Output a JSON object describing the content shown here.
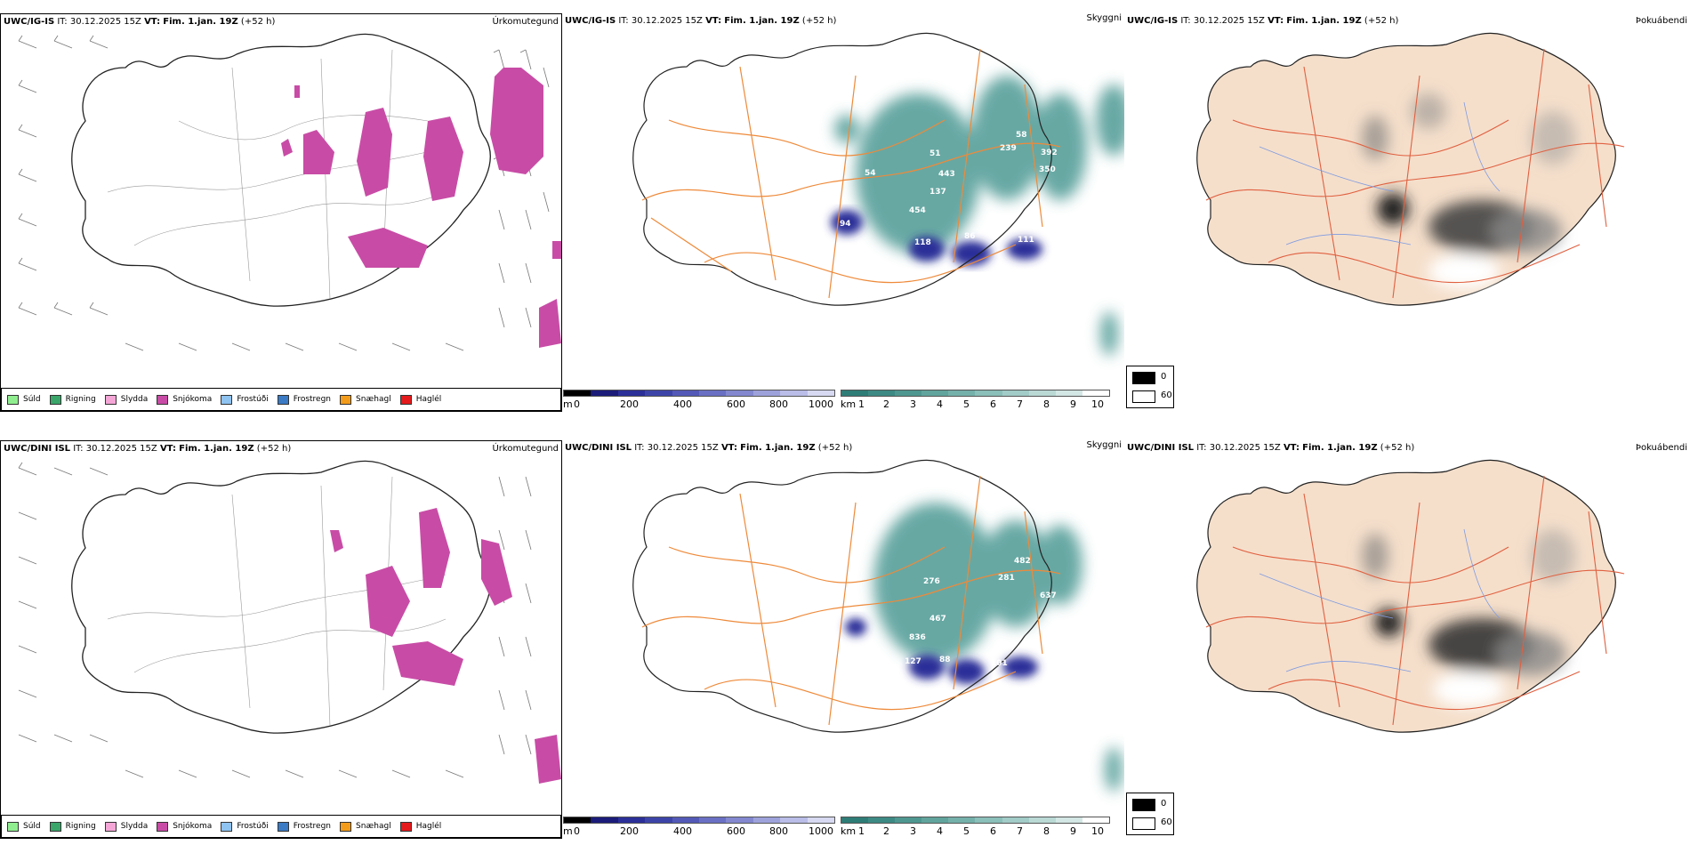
{
  "rows": [
    {
      "model": "UWC/IG-IS",
      "it_label": "IT:",
      "it_value": "30.12.2025 15Z",
      "vt_label": "VT:",
      "vt_value": "Fim. 1.jan. 19Z",
      "lead": "(+52 h)"
    },
    {
      "model": "UWC/DINI ISL",
      "it_label": "IT:",
      "it_value": "30.12.2025 15Z",
      "vt_label": "VT:",
      "vt_value": "Fim. 1.jan. 19Z",
      "lead": "(+52 h)"
    }
  ],
  "panel_names": {
    "precip": "Úrkomutegund",
    "cloud": "Skyggni",
    "fog": "Þokuábendi"
  },
  "precip_legend": [
    {
      "label": "Súld",
      "color": "#90ee90"
    },
    {
      "label": "Rigning",
      "color": "#3aa66a"
    },
    {
      "label": "Slydda",
      "color": "#f4a6d7"
    },
    {
      "label": "Snjókoma",
      "color": "#c84ca6"
    },
    {
      "label": "Frostúði",
      "color": "#8fc3f0"
    },
    {
      "label": "Frostregn",
      "color": "#3b7ac4"
    },
    {
      "label": "Snæhagl",
      "color": "#f39c1b"
    },
    {
      "label": "Haglél",
      "color": "#e41a1c"
    }
  ],
  "height_scale": {
    "unit": "m",
    "ticks": [
      "0",
      "200",
      "400",
      "600",
      "800",
      "1000"
    ],
    "colors": [
      "#000000",
      "#1b1b7a",
      "#2b2f98",
      "#3d44a8",
      "#5359b6",
      "#6a70c3",
      "#8388cf",
      "#9ea2db",
      "#babde7",
      "#d7d9f2"
    ]
  },
  "visibility_scale": {
    "unit": "km",
    "ticks": [
      "1",
      "2",
      "3",
      "4",
      "5",
      "6",
      "7",
      "8",
      "9",
      "10"
    ],
    "colors": [
      "#2f7d77",
      "#3d8a84",
      "#4e9790",
      "#61a49d",
      "#75b1ab",
      "#8bbfb9",
      "#a2ccc7",
      "#bad9d5",
      "#d3e7e4",
      "#ffffff"
    ]
  },
  "fog_legend": [
    {
      "label": "0",
      "color": "#000000"
    },
    {
      "label": "60",
      "color": "#ffffff"
    }
  ],
  "cloud_labels_top": [
    "94",
    "118",
    "86",
    "111",
    "454",
    "137",
    "443",
    "51",
    "239",
    "392",
    "350",
    "58",
    "54"
  ],
  "cloud_labels_bottom": [
    "127",
    "88",
    "101",
    "836",
    "467",
    "276",
    "281",
    "637",
    "482"
  ]
}
